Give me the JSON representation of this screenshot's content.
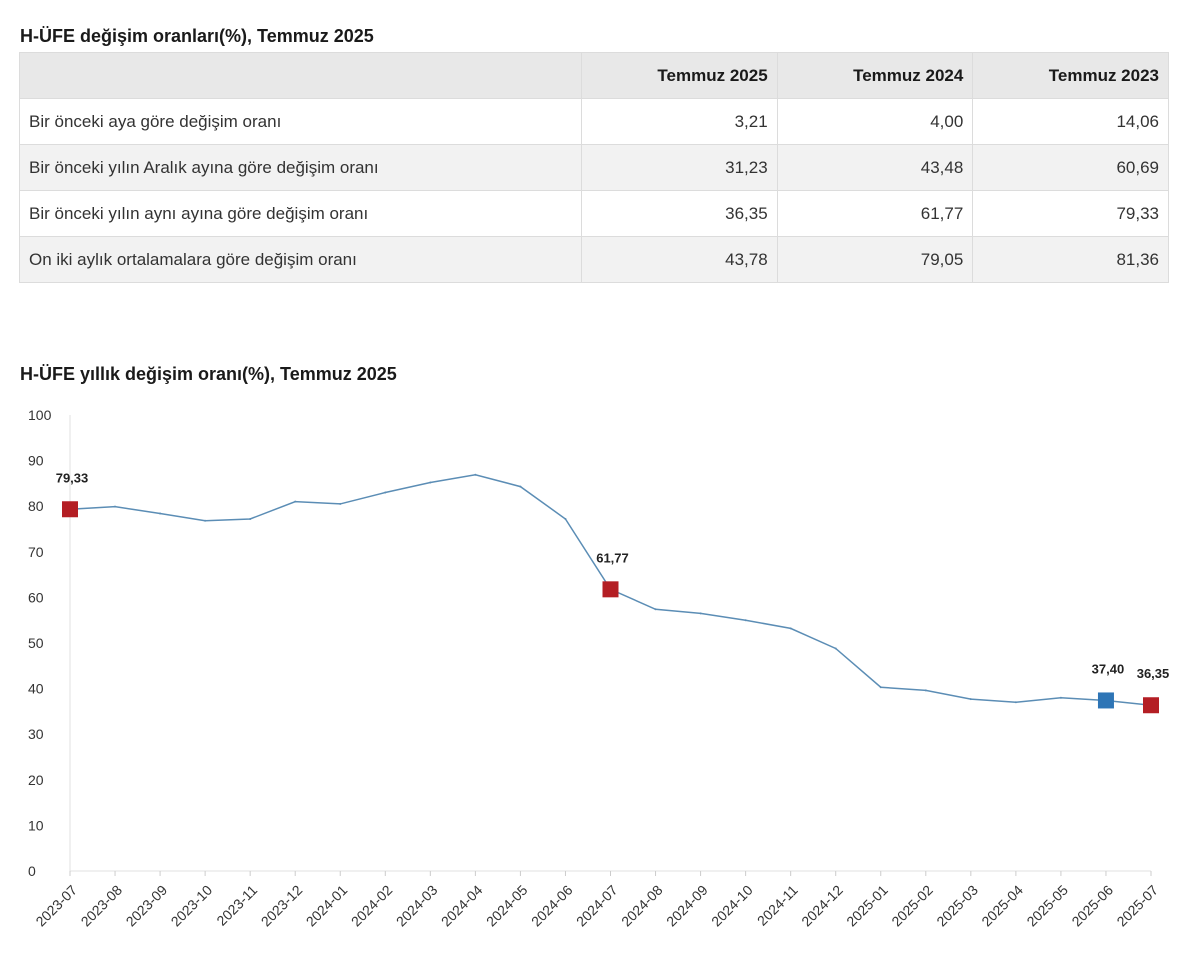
{
  "table": {
    "title": "H-ÜFE değişim oranları(%), Temmuz 2025",
    "columns": [
      "",
      "Temmuz 2025",
      "Temmuz 2024",
      "Temmuz 2023"
    ],
    "rows": [
      {
        "label": "Bir önceki aya göre değişim oranı",
        "values": [
          "3,21",
          "4,00",
          "14,06"
        ]
      },
      {
        "label": "Bir önceki yılın Aralık ayına göre değişim oranı",
        "values": [
          "31,23",
          "43,48",
          "60,69"
        ]
      },
      {
        "label": "Bir önceki yılın aynı ayına göre değişim oranı",
        "values": [
          "36,35",
          "61,77",
          "79,33"
        ]
      },
      {
        "label": "On iki aylık ortalamalara göre değişim oranı",
        "values": [
          "43,78",
          "79,05",
          "81,36"
        ]
      }
    ]
  },
  "chart_data": {
    "type": "line",
    "title": "H-ÜFE yıllık değişim oranı(%), Temmuz 2025",
    "xlabel": "",
    "ylabel": "",
    "ylim": [
      0,
      100
    ],
    "yticks": [
      0,
      10,
      20,
      30,
      40,
      50,
      60,
      70,
      80,
      90,
      100
    ],
    "grid": false,
    "x": [
      "2023-07",
      "2023-08",
      "2023-09",
      "2023-10",
      "2023-11",
      "2023-12",
      "2024-01",
      "2024-02",
      "2024-03",
      "2024-04",
      "2024-05",
      "2024-06",
      "2024-07",
      "2024-08",
      "2024-09",
      "2024-10",
      "2024-11",
      "2024-12",
      "2025-01",
      "2025-02",
      "2025-03",
      "2025-04",
      "2025-05",
      "2025-06",
      "2025-07"
    ],
    "series": [
      {
        "values": [
          79.33,
          79.9,
          78.4,
          76.8,
          77.2,
          81.0,
          80.5,
          83.0,
          85.2,
          86.9,
          84.3,
          77.2,
          61.77,
          57.4,
          56.5,
          55.0,
          53.2,
          48.8,
          40.3,
          39.6,
          37.7,
          37.0,
          38.0,
          37.4,
          36.35
        ],
        "color": "#5b8db5"
      }
    ],
    "highlights": [
      {
        "index": 0,
        "label": "79,33",
        "color": "#b41e24"
      },
      {
        "index": 12,
        "label": "61,77",
        "color": "#b41e24"
      },
      {
        "index": 23,
        "label": "37,40",
        "color": "#2e75b6"
      },
      {
        "index": 24,
        "label": "36,35",
        "color": "#b41e24"
      }
    ]
  }
}
